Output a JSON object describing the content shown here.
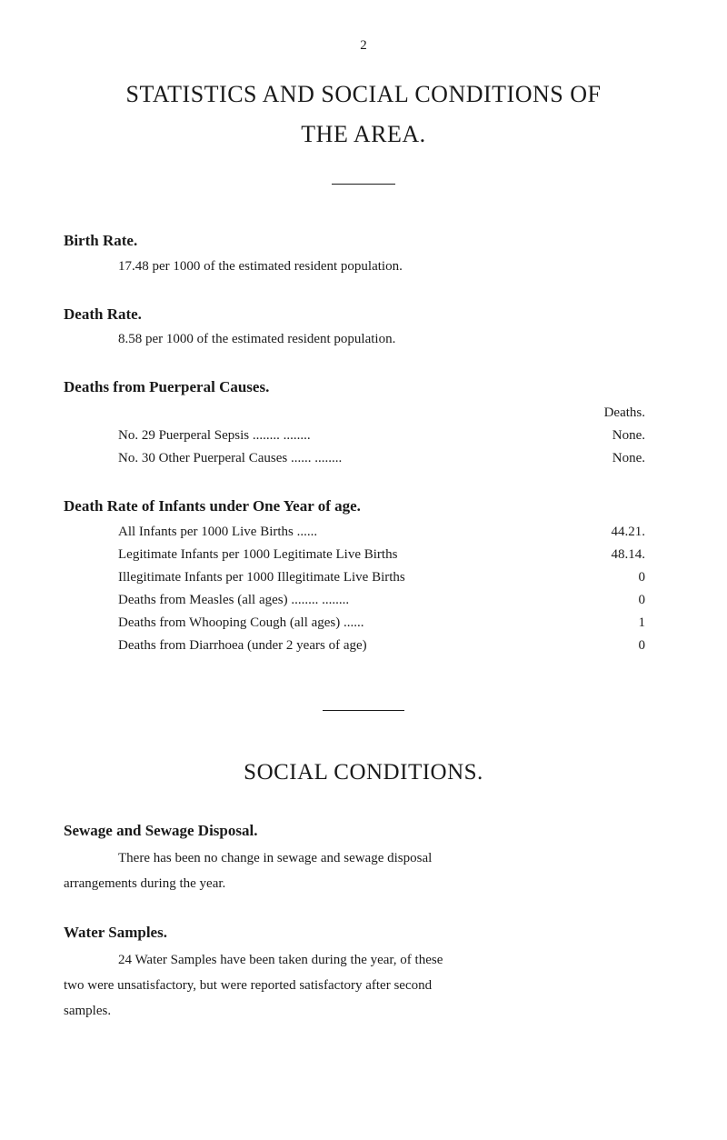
{
  "page_number": "2",
  "title_line1": "STATISTICS AND SOCIAL CONDITIONS OF",
  "title_line2": "THE AREA.",
  "sections": {
    "birth_rate": {
      "heading": "Birth Rate.",
      "text": "17.48 per 1000 of the estimated resident population."
    },
    "death_rate": {
      "heading": "Death Rate.",
      "text": "8.58 per 1000 of the estimated resident population."
    },
    "puerperal": {
      "heading": "Deaths from Puerperal Causes.",
      "col_header": "Deaths.",
      "rows": [
        {
          "label": "No. 29 Puerperal Sepsis        ........            ........",
          "value": "None."
        },
        {
          "label": "No. 30 Other Puerperal Causes  ......              ........",
          "value": "None."
        }
      ]
    },
    "infant_rate": {
      "heading": "Death Rate of Infants under One Year of age.",
      "rows": [
        {
          "label": "All Infants per 1000 Live Births              ......",
          "value": "44.21."
        },
        {
          "label": "Legitimate Infants per 1000 Legitimate Live Births",
          "value": "48.14."
        },
        {
          "label": "Illegitimate Infants per 1000 Illegitimate Live Births",
          "value": "0"
        },
        {
          "label": "Deaths from Measles (all ages)     ........        ........",
          "value": "0"
        },
        {
          "label": "Deaths from Whooping Cough (all ages)        ......",
          "value": "1"
        },
        {
          "label": "Deaths from Diarrhoea (under 2 years of age)",
          "value": "0"
        }
      ]
    }
  },
  "social": {
    "title": "SOCIAL CONDITIONS.",
    "sewage": {
      "heading": "Sewage and Sewage Disposal.",
      "para1": "There has been no change in sewage and sewage disposal",
      "para2": "arrangements during the year."
    },
    "water": {
      "heading": "Water Samples.",
      "para1": "24 Water Samples have been taken during the year, of these",
      "para2": "two were unsatisfactory, but were reported satisfactory after second",
      "para3": "samples."
    }
  }
}
